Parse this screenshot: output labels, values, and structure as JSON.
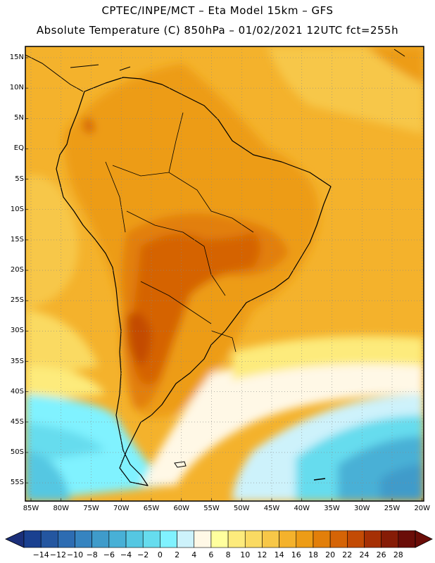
{
  "header": {
    "line1": "CPTEC/INPE/MCT –   Eta Model 15km – GFS",
    "line2": "Absolute Temperature (C) 850hPa – 01/02/2021 12UTC fct=255h"
  },
  "map": {
    "lat_labels": [
      "15N",
      "10N",
      "5N",
      "EQ",
      "5S",
      "10S",
      "15S",
      "20S",
      "25S",
      "30S",
      "35S",
      "40S",
      "45S",
      "50S",
      "55S"
    ],
    "lon_labels": [
      "85W",
      "80W",
      "75W",
      "70W",
      "65W",
      "60W",
      "55W",
      "50W",
      "45W",
      "40W",
      "35W",
      "30W",
      "25W",
      "20W"
    ]
  },
  "colorbar": {
    "labels": [
      "-14",
      "-12",
      "-10",
      "-8",
      "-6",
      "-4",
      "-2",
      "0",
      "2",
      "4",
      "6",
      "8",
      "10",
      "12",
      "14",
      "16",
      "18",
      "20",
      "22",
      "24",
      "26",
      "28"
    ],
    "colors": [
      "#1a4090",
      "#2456a0",
      "#2d6cb2",
      "#3684c0",
      "#3f9bca",
      "#48b0d6",
      "#55c7e2",
      "#66dcee",
      "#80f2ff",
      "#cdf2fb",
      "#fff8e6",
      "#ffff9e",
      "#fdeb7c",
      "#fada62",
      "#f7c748",
      "#f4b22c",
      "#ed9c16",
      "#e27f0a",
      "#d56406",
      "#c34b04",
      "#a63004",
      "#861c06",
      "#6a0d08"
    ],
    "arrow_left_color": "#1b2f7a",
    "arrow_right_color": "#6a0d08"
  }
}
